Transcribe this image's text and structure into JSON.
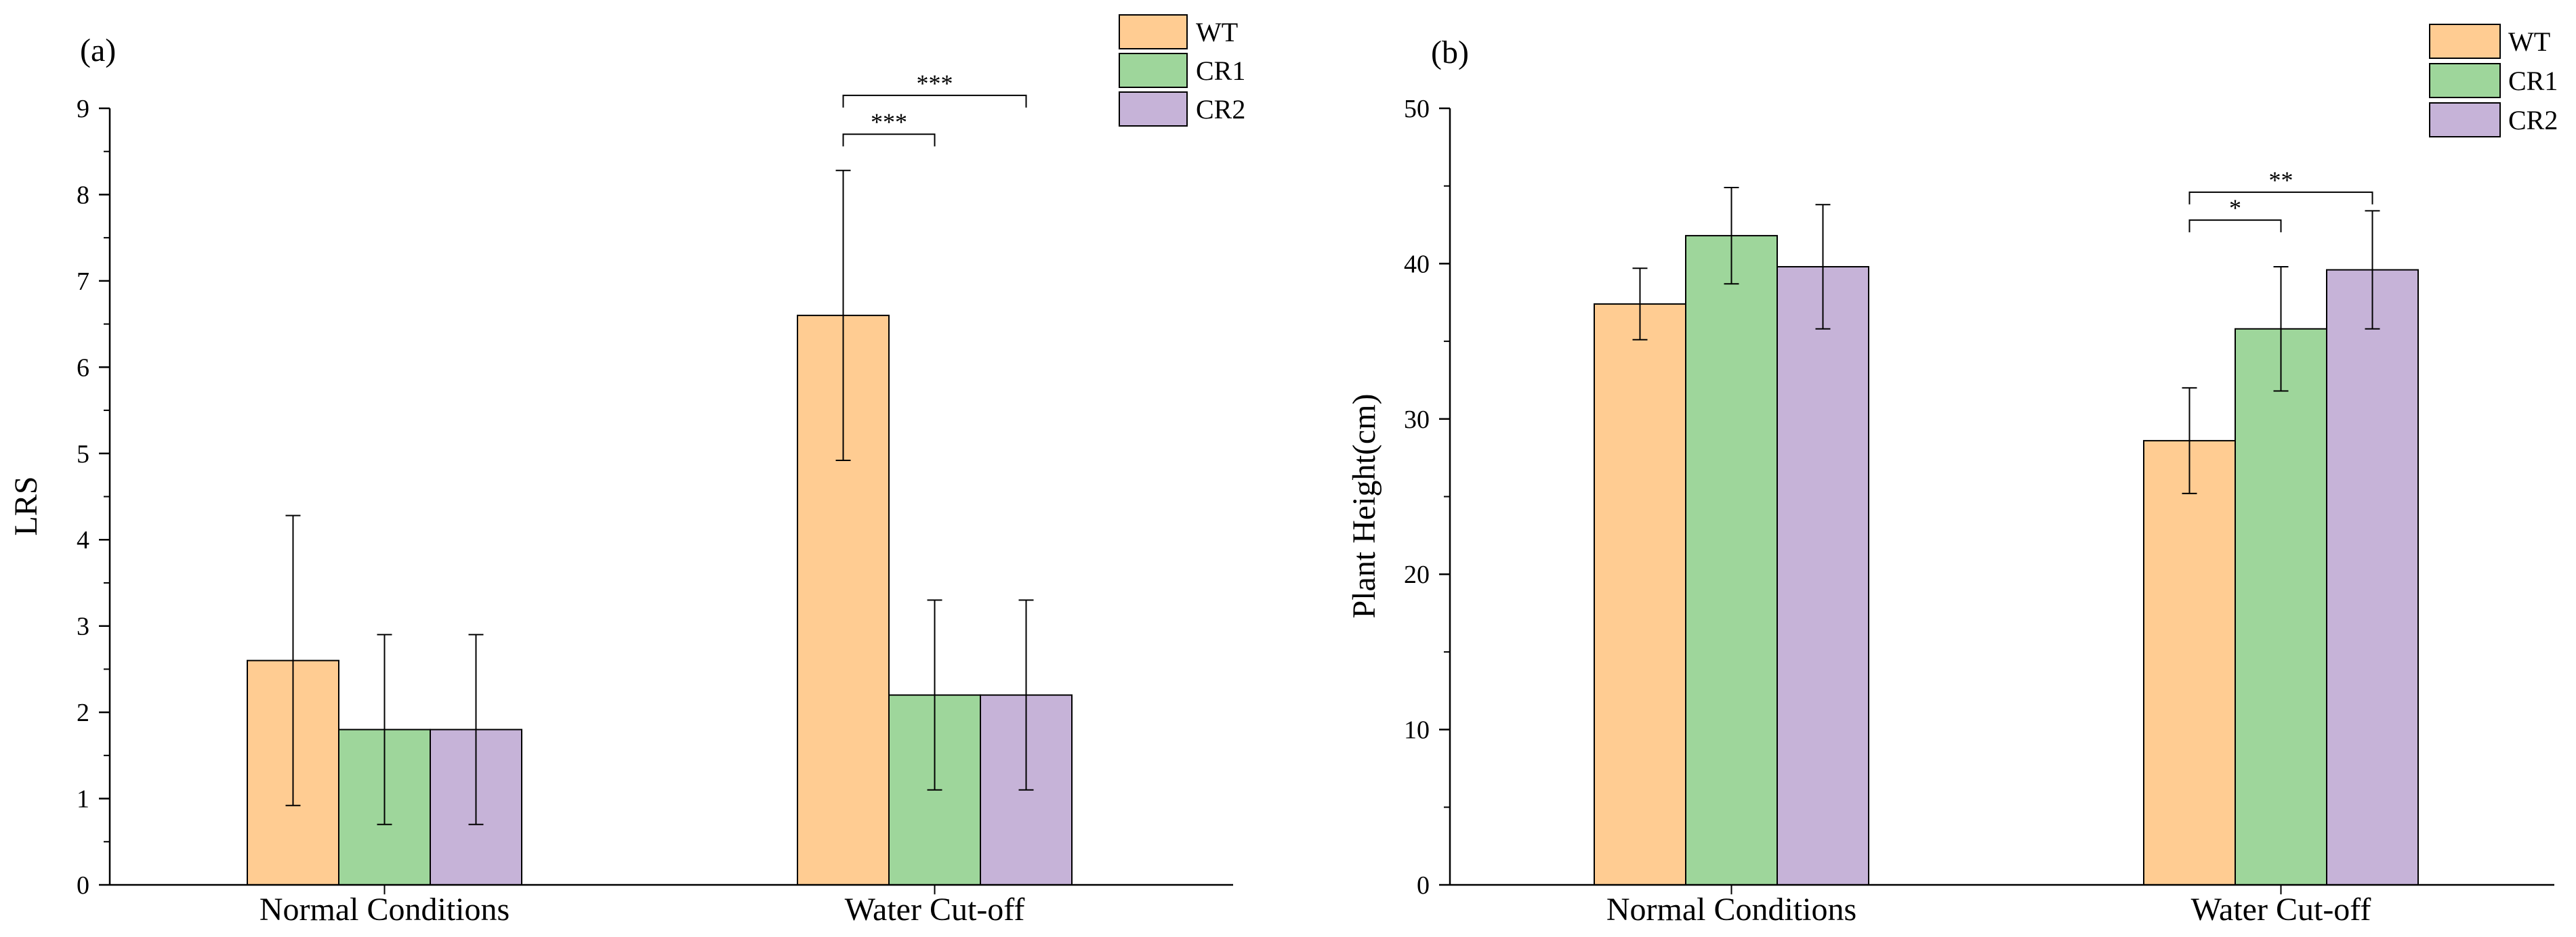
{
  "colors": {
    "WT": "#FFCC92",
    "CR1": "#9ED69B",
    "CR2": "#C6B3D8",
    "axis": "#000000"
  },
  "chart_data": [
    {
      "type": "bar",
      "panel_label": "(a)",
      "title": "",
      "xlabel": "",
      "ylabel": "LRS",
      "ylim": [
        0,
        9
      ],
      "yticks": [
        "0",
        "1",
        "2",
        "3",
        "4",
        "5",
        "6",
        "7",
        "8",
        "9"
      ],
      "categories": [
        "Normal Conditions",
        "Water Cut-off"
      ],
      "series": [
        {
          "name": "WT",
          "values": [
            2.6,
            6.6
          ],
          "errors": [
            1.68,
            1.68
          ]
        },
        {
          "name": "CR1",
          "values": [
            1.8,
            2.2
          ],
          "errors": [
            1.1,
            1.1
          ]
        },
        {
          "name": "CR2",
          "values": [
            1.8,
            2.2
          ],
          "errors": [
            1.1,
            1.1
          ]
        }
      ],
      "legend": {
        "position": "top-right",
        "entries": [
          "WT",
          "CR1",
          "CR2"
        ]
      },
      "annotations": [
        {
          "category": "Water Cut-off",
          "from": "WT",
          "to": "CR1",
          "label": "***",
          "y": 8.7
        },
        {
          "category": "Water Cut-off",
          "from": "WT",
          "to": "CR2",
          "label": "***",
          "y": 9.15
        }
      ]
    },
    {
      "type": "bar",
      "panel_label": "(b)",
      "title": "",
      "xlabel": "",
      "ylabel": "Plant Height(cm)",
      "ylim": [
        0,
        50
      ],
      "yticks": [
        "0",
        "10",
        "20",
        "30",
        "40",
        "50"
      ],
      "categories": [
        "Normal Conditions",
        "Water Cut-off"
      ],
      "series": [
        {
          "name": "WT",
          "values": [
            37.4,
            28.6
          ],
          "errors": [
            2.3,
            3.4
          ]
        },
        {
          "name": "CR1",
          "values": [
            41.8,
            35.8
          ],
          "errors": [
            3.1,
            4.0
          ]
        },
        {
          "name": "CR2",
          "values": [
            39.8,
            39.6
          ],
          "errors": [
            4.0,
            3.8
          ]
        }
      ],
      "legend": {
        "position": "top-right",
        "entries": [
          "WT",
          "CR1",
          "CR2"
        ]
      },
      "annotations": [
        {
          "category": "Water Cut-off",
          "from": "WT",
          "to": "CR1",
          "label": "*",
          "y": 42.8
        },
        {
          "category": "Water Cut-off",
          "from": "WT",
          "to": "CR2",
          "label": "**",
          "y": 44.6
        }
      ]
    }
  ]
}
